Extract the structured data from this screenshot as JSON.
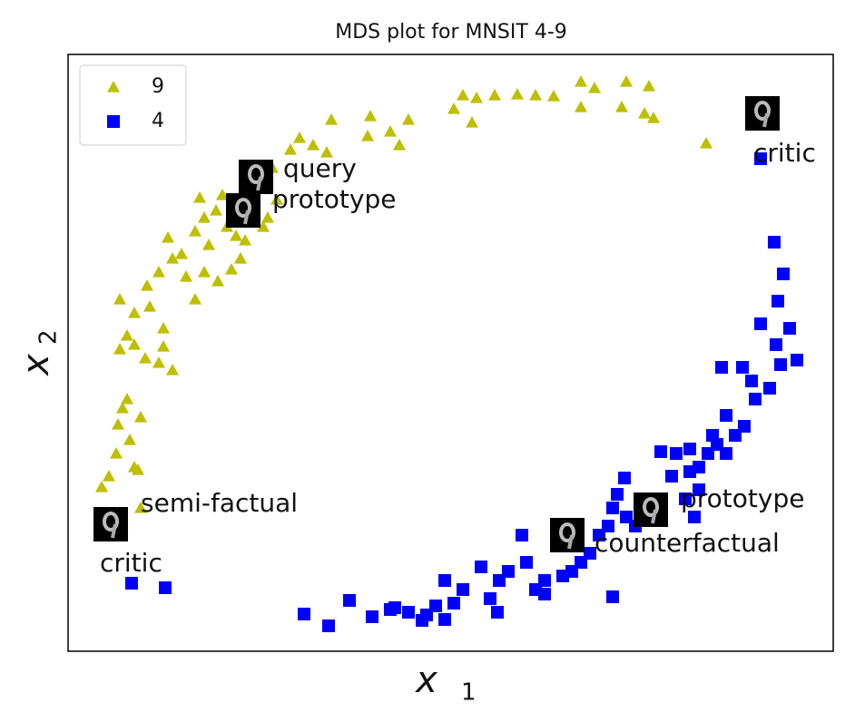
{
  "chart_data": {
    "type": "scatter",
    "title": "MDS plot for MNSIT 4-9",
    "x_label": "x",
    "x_label_sub": "1",
    "y_label": "x",
    "y_label_sub": "2",
    "xlim": [
      0,
      843
    ],
    "ylim": [
      0,
      658
    ],
    "legend": "upper left",
    "series": [
      {
        "name": "9",
        "color": "#bfbf00",
        "marker": "triangle",
        "x": [
          37,
          45,
          73,
          77,
          53,
          68,
          55,
          80,
          60,
          65,
          57,
          73,
          65,
          105,
          100,
          115,
          85,
          73,
          57,
          90,
          105,
          87,
          100,
          115,
          110,
          125,
          130,
          140,
          150,
          165,
          180,
          190,
          140,
          150,
          163,
          145,
          170,
          185,
          195,
          215,
          220,
          230,
          225,
          245,
          255,
          270,
          290,
          285,
          333,
          330,
          355,
          365,
          375,
          425,
          435,
          450,
          470,
          445,
          495,
          515,
          535,
          565,
          580,
          565,
          615,
          640,
          610,
          635,
          645,
          703,
          155,
          175,
          200,
          80
        ],
        "y": [
          181,
          193,
          203,
          200,
          218,
          233,
          250,
          258,
          268,
          278,
          333,
          338,
          348,
          336,
          318,
          310,
          323,
          373,
          388,
          380,
          356,
          403,
          418,
          433,
          456,
          438,
          413,
          388,
          418,
          408,
          421,
          433,
          463,
          478,
          486,
          500,
          503,
          458,
          453,
          468,
          478,
          498,
          533,
          553,
          566,
          558,
          586,
          550,
          590,
          568,
          573,
          558,
          586,
          598,
          613,
          610,
          613,
          583,
          614,
          613,
          612,
          628,
          621,
          600,
          628,
          623,
          600,
          593,
          588,
          560,
          448,
          468,
          488,
          158
        ]
      },
      {
        "name": "4",
        "color": "#0000ff",
        "marker": "square",
        "x": [
          763,
          778,
          788,
          782,
          763,
          795,
          780,
          803,
          785,
          720,
          743,
          753,
          773,
          757,
          725,
          745,
          735,
          715,
          705,
          695,
          685,
          665,
          653,
          670,
          685,
          710,
          725,
          695,
          680,
          690,
          645,
          613,
          605,
          600,
          615,
          625,
          595,
          585,
          575,
          565,
          555,
          545,
          525,
          515,
          505,
          500,
          485,
          475,
          465,
          455,
          435,
          425,
          415,
          405,
          395,
          375,
          355,
          335,
          310,
          287,
          260,
          360,
          415,
          390,
          473,
          525,
          70,
          107,
          545,
          600,
          635
        ],
        "y": [
          543,
          451,
          416,
          386,
          361,
          356,
          338,
          321,
          316,
          313,
          313,
          298,
          290,
          278,
          260,
          248,
          238,
          228,
          218,
          203,
          198,
          193,
          220,
          218,
          223,
          238,
          218,
          178,
          168,
          148,
          148,
          191,
          173,
          158,
          148,
          138,
          138,
          128,
          108,
          98,
          88,
          83,
          78,
          68,
          98,
          128,
          88,
          78,
          58,
          93,
          68,
          53,
          78,
          50,
          40,
          43,
          46,
          38,
          56,
          28,
          41,
          48,
          35,
          34,
          43,
          63,
          75,
          70,
          118,
          60,
          158
        ]
      }
    ],
    "image_points": [
      {
        "x": 207,
        "y": 523
      },
      {
        "x": 193,
        "y": 486
      },
      {
        "x": 765,
        "y": 593
      },
      {
        "x": 47,
        "y": 140
      },
      {
        "x": 642,
        "y": 156
      },
      {
        "x": 550,
        "y": 128
      }
    ],
    "annotations": [
      {
        "text": "query",
        "x": 237,
        "y": 531
      },
      {
        "text": "prototype",
        "x": 225,
        "y": 497
      },
      {
        "text": "critic",
        "x": 755,
        "y": 548
      },
      {
        "text": "semi-factual",
        "x": 80,
        "y": 162
      },
      {
        "text": "critic",
        "x": 35,
        "y": 96
      },
      {
        "text": "prototype",
        "x": 675,
        "y": 167
      },
      {
        "text": "counterfactual",
        "x": 580,
        "y": 118
      }
    ]
  }
}
